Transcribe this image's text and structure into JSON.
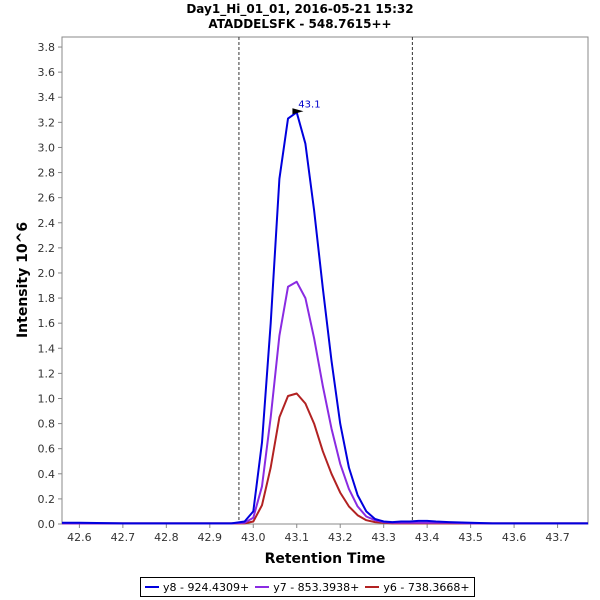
{
  "chart_data": {
    "type": "line",
    "title": "Day1_Hi_01_01, 2016-05-21 15:32",
    "subtitle": "ATADDELSFK - 548.7615++",
    "xlabel": "Retention Time",
    "ylabel": "Intensity 10^6",
    "xlim": [
      42.56,
      43.77
    ],
    "ylim": [
      0,
      3.88
    ],
    "x_ticks": [
      42.6,
      42.7,
      42.8,
      42.9,
      43.0,
      43.1,
      43.2,
      43.3,
      43.4,
      43.5,
      43.6,
      43.7
    ],
    "x_tick_labels": [
      "42.6",
      "42.7",
      "42.8",
      "42.9",
      "43.0",
      "43.1",
      "43.2",
      "43.3",
      "43.4",
      "43.5",
      "43.6",
      "43.7"
    ],
    "y_ticks": [
      0,
      0.2,
      0.4,
      0.6,
      0.8,
      1.0,
      1.2,
      1.4,
      1.6,
      1.8,
      2.0,
      2.2,
      2.4,
      2.6,
      2.8,
      3.0,
      3.2,
      3.4,
      3.6,
      3.8
    ],
    "y_tick_labels": [
      "0.0",
      "0.2",
      "0.4",
      "0.6",
      "0.8",
      "1.0",
      "1.2",
      "1.4",
      "1.6",
      "1.8",
      "2.0",
      "2.2",
      "2.4",
      "2.6",
      "2.8",
      "3.0",
      "3.2",
      "3.4",
      "3.6",
      "3.8"
    ],
    "boundaries": [
      42.967,
      43.366
    ],
    "peak_annotation": {
      "label": "43.1",
      "x": 43.12,
      "y": 3.28
    },
    "x": [
      42.56,
      42.6,
      42.7,
      42.8,
      42.9,
      42.95,
      42.98,
      43.0,
      43.02,
      43.04,
      43.06,
      43.08,
      43.1,
      43.12,
      43.14,
      43.16,
      43.18,
      43.2,
      43.22,
      43.24,
      43.26,
      43.28,
      43.3,
      43.32,
      43.34,
      43.36,
      43.38,
      43.4,
      43.42,
      43.45,
      43.5,
      43.55,
      43.6,
      43.7,
      43.77
    ],
    "series": [
      {
        "name": "y8 - 924.4309+",
        "color": "#0000dd",
        "values": [
          0.01,
          0.01,
          0.005,
          0.005,
          0.005,
          0.005,
          0.02,
          0.1,
          0.65,
          1.6,
          2.75,
          3.23,
          3.28,
          3.03,
          2.5,
          1.88,
          1.3,
          0.8,
          0.45,
          0.23,
          0.1,
          0.04,
          0.02,
          0.015,
          0.02,
          0.02,
          0.025,
          0.025,
          0.02,
          0.015,
          0.01,
          0.005,
          0.005,
          0.005,
          0.005
        ]
      },
      {
        "name": "y7 - 853.3938+",
        "color": "#8a2be2",
        "values": [
          0.005,
          0.005,
          0.005,
          0.005,
          0.005,
          0.005,
          0.01,
          0.05,
          0.3,
          0.85,
          1.5,
          1.89,
          1.93,
          1.8,
          1.48,
          1.1,
          0.76,
          0.48,
          0.28,
          0.14,
          0.06,
          0.03,
          0.015,
          0.01,
          0.01,
          0.01,
          0.01,
          0.01,
          0.01,
          0.01,
          0.005,
          0.005,
          0.005,
          0.005,
          0.005
        ]
      },
      {
        "name": "y6 - 738.3668+",
        "color": "#b22222",
        "values": [
          0.005,
          0.005,
          0.005,
          0.005,
          0.005,
          0.005,
          0.005,
          0.02,
          0.15,
          0.45,
          0.85,
          1.02,
          1.04,
          0.96,
          0.8,
          0.58,
          0.4,
          0.25,
          0.14,
          0.07,
          0.03,
          0.015,
          0.01,
          0.005,
          0.005,
          0.005,
          0.005,
          0.005,
          0.005,
          0.005,
          0.005,
          0.005,
          0.005,
          0.005,
          0.005
        ]
      }
    ]
  }
}
